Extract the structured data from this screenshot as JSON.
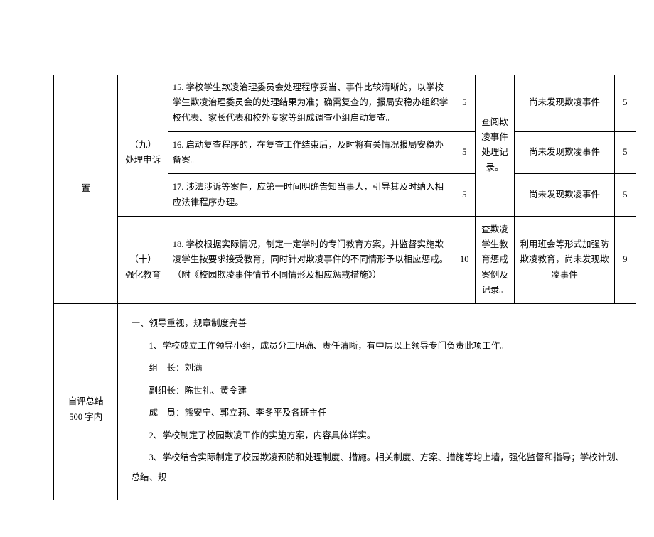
{
  "table": {
    "rows": [
      {
        "left_top": "置",
        "category": "（九）\n处理申诉",
        "items": [
          {
            "desc": "15. 学校学生欺凌治理委员会处理程序妥当、事件比较清晰的，以学校学生欺凌治理委员会的处理结果为准；确需复查的，报局安稳办组织学校代表、家长代表和校外专家等组成调查小组启动复查。",
            "score": "5",
            "check": "查阅欺凌事件处理记录。",
            "result": "尚未发现欺凌事件",
            "final": "5"
          },
          {
            "desc": "16. 启动复查程序的，在复查工作结束后，及时将有关情况报局安稳办备案。",
            "score": "5",
            "result": "尚未发现欺凌事件",
            "final": "5"
          },
          {
            "desc": "17. 涉法涉诉等案件，应第一时间明确告知当事人，引导其及时纳入相应法律程序办理。",
            "score": "5",
            "result": "尚未发现欺凌事件",
            "final": "5"
          }
        ]
      },
      {
        "category": "（十）\n强化教育",
        "items": [
          {
            "desc": "18. 学校根据实际情况，制定一定学时的专门教育方案，并监督实施欺凌学生按要求接受教育，同时针对欺凌事件的不同情形予以相应惩戒。（附《校园欺凌事件情节不同情形及相应惩戒措施》）",
            "score": "10",
            "check": "查欺凌学生教育惩戒案例及记录。",
            "result": "利用班会等形式加强防欺凌教育，尚未发现欺凌事件",
            "final": "9"
          }
        ]
      }
    ],
    "summary": {
      "label": "自评总结\n500 字内",
      "heading": "一、领导重视，规章制度完善",
      "lines": [
        "1、学校成立工作领导小组，成员分工明确、责任清晰，有中层以上领导专门负责此项工作。",
        "组　长：刘满",
        "副组长：陈世礼、黄令建",
        "成　员：熊安宁、郭立莉、李冬平及各班主任",
        "2、学校制定了校园欺凌工作的实施方案，内容具体详实。",
        "3、学校结合实际制定了校园欺凌预防和处理制度、措施。相关制度、方案、措施等均上墙，强化监督和指导；学校计划、总结、规"
      ]
    }
  }
}
